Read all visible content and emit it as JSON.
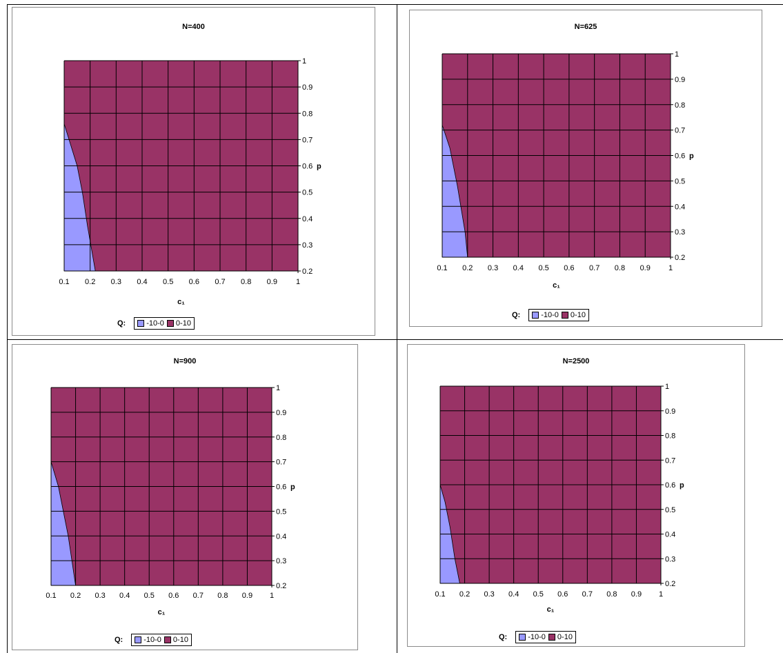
{
  "legend": {
    "label": "Q:",
    "items": [
      {
        "label": "-10-0",
        "color": "#9999ff"
      },
      {
        "label": "0-10",
        "color": "#993366"
      }
    ]
  },
  "chart_data": [
    {
      "type": "area",
      "title": "N=400",
      "xlabel": "c₁",
      "ylabel": "p",
      "x_ticks": [
        "0.1",
        "0.2",
        "0.3",
        "0.4",
        "0.5",
        "0.6",
        "0.7",
        "0.8",
        "0.9",
        "1"
      ],
      "y_ticks": [
        "0.2",
        "0.3",
        "0.4",
        "0.5",
        "0.6",
        "0.7",
        "0.8",
        "0.9",
        "1"
      ],
      "xlim": [
        0.1,
        1
      ],
      "ylim": [
        0.2,
        1
      ],
      "grid": true,
      "legend_placement": "bottom",
      "series": [
        {
          "name": "-10-0",
          "boundary": [
            [
              0.1,
              0.76
            ],
            [
              0.15,
              0.6
            ],
            [
              0.17,
              0.5
            ],
            [
              0.19,
              0.37
            ],
            [
              0.22,
              0.2
            ]
          ]
        },
        {
          "name": "0-10"
        }
      ]
    },
    {
      "type": "area",
      "title": "N=625",
      "xlabel": "c₁",
      "ylabel": "p",
      "x_ticks": [
        "0.1",
        "0.2",
        "0.3",
        "0.4",
        "0.5",
        "0.6",
        "0.7",
        "0.8",
        "0.9",
        "1"
      ],
      "y_ticks": [
        "0.2",
        "0.3",
        "0.4",
        "0.5",
        "0.6",
        "0.7",
        "0.8",
        "0.9",
        "1"
      ],
      "xlim": [
        0.1,
        1
      ],
      "ylim": [
        0.2,
        1
      ],
      "grid": true,
      "legend_placement": "bottom",
      "series": [
        {
          "name": "-10-0",
          "boundary": [
            [
              0.1,
              0.72
            ],
            [
              0.13,
              0.63
            ],
            [
              0.16,
              0.48
            ],
            [
              0.19,
              0.3
            ],
            [
              0.2,
              0.2
            ]
          ]
        },
        {
          "name": "0-10"
        }
      ]
    },
    {
      "type": "area",
      "title": "N=900",
      "xlabel": "c₁",
      "ylabel": "p",
      "x_ticks": [
        "0.1",
        "0.2",
        "0.3",
        "0.4",
        "0.5",
        "0.6",
        "0.7",
        "0.8",
        "0.9",
        "1"
      ],
      "y_ticks": [
        "0.2",
        "0.3",
        "0.4",
        "0.5",
        "0.6",
        "0.7",
        "0.8",
        "0.9",
        "1"
      ],
      "xlim": [
        0.1,
        1
      ],
      "ylim": [
        0.2,
        1
      ],
      "grid": true,
      "legend_placement": "bottom",
      "series": [
        {
          "name": "-10-0",
          "boundary": [
            [
              0.1,
              0.7
            ],
            [
              0.13,
              0.6
            ],
            [
              0.15,
              0.5
            ],
            [
              0.17,
              0.4
            ],
            [
              0.2,
              0.2
            ]
          ]
        },
        {
          "name": "0-10"
        }
      ]
    },
    {
      "type": "area",
      "title": "N=2500",
      "xlabel": "c₁",
      "ylabel": "p",
      "x_ticks": [
        "0.1",
        "0.2",
        "0.3",
        "0.4",
        "0.5",
        "0.6",
        "0.7",
        "0.8",
        "0.9",
        "1"
      ],
      "y_ticks": [
        "0.2",
        "0.3",
        "0.4",
        "0.5",
        "0.6",
        "0.7",
        "0.8",
        "0.9",
        "1"
      ],
      "xlim": [
        0.1,
        1
      ],
      "ylim": [
        0.2,
        1
      ],
      "grid": true,
      "legend_placement": "bottom",
      "series": [
        {
          "name": "-10-0",
          "boundary": [
            [
              0.1,
              0.6
            ],
            [
              0.12,
              0.53
            ],
            [
              0.14,
              0.43
            ],
            [
              0.16,
              0.3
            ],
            [
              0.18,
              0.2
            ]
          ]
        },
        {
          "name": "0-10"
        }
      ]
    }
  ]
}
